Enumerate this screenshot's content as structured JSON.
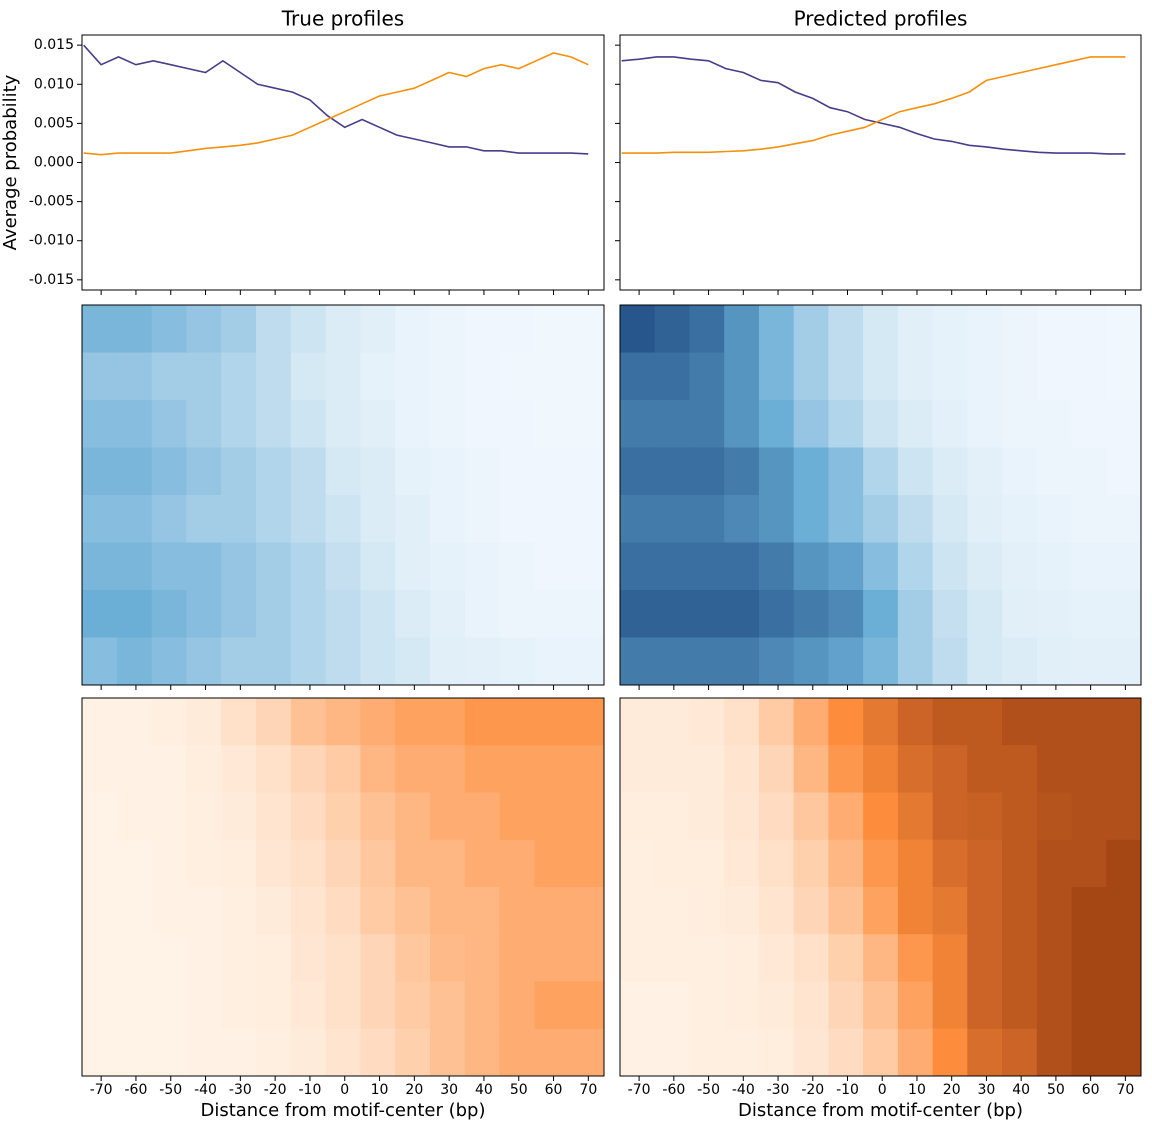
{
  "chart_data": [
    {
      "type": "line",
      "title": "True profiles",
      "ylabel": "Average probability",
      "x": [
        -75,
        -70,
        -65,
        -60,
        -55,
        -50,
        -45,
        -40,
        -35,
        -30,
        -25,
        -20,
        -15,
        -10,
        -5,
        0,
        5,
        10,
        15,
        20,
        25,
        30,
        35,
        40,
        45,
        50,
        55,
        60,
        65,
        70
      ],
      "series": [
        {
          "color": "#483d8b",
          "values": [
            0.015,
            0.0125,
            0.0135,
            0.0125,
            0.013,
            0.0125,
            0.012,
            0.0115,
            0.013,
            0.0115,
            0.01,
            0.0095,
            0.009,
            0.008,
            0.006,
            0.0045,
            0.0055,
            0.0045,
            0.0035,
            0.003,
            0.0025,
            0.002,
            0.002,
            0.0015,
            0.0015,
            0.0012,
            0.0012,
            0.0012,
            0.0012,
            0.0011
          ]
        },
        {
          "color": "#f5900e",
          "values": [
            0.0012,
            0.001,
            0.0012,
            0.0012,
            0.0012,
            0.0012,
            0.0015,
            0.0018,
            0.002,
            0.0022,
            0.0025,
            0.003,
            0.0035,
            0.0045,
            0.0055,
            0.0065,
            0.0075,
            0.0085,
            0.009,
            0.0095,
            0.0105,
            0.0115,
            0.011,
            0.012,
            0.0125,
            0.012,
            0.013,
            0.014,
            0.0135,
            0.0125
          ]
        }
      ],
      "xlim": [
        -75.5,
        74.5
      ],
      "xticks": [
        -70,
        -60,
        -50,
        -40,
        -30,
        -20,
        -10,
        0,
        10,
        20,
        30,
        40,
        50,
        60,
        70
      ],
      "ylim": [
        -0.0163,
        0.0163
      ],
      "yticks": [
        0.015,
        {
          "value": 0.01,
          "label": "0.010"
        },
        0.005,
        {
          "value": 0,
          "label": "0.000"
        },
        -0.005,
        {
          "value": -0.01,
          "label": "-0.010"
        },
        -0.015
      ],
      "show_ytick_labels": true
    },
    {
      "type": "line",
      "title": "Predicted profiles",
      "x": [
        -75,
        -70,
        -65,
        -60,
        -55,
        -50,
        -45,
        -40,
        -35,
        -30,
        -25,
        -20,
        -15,
        -10,
        -5,
        0,
        5,
        10,
        15,
        20,
        25,
        30,
        35,
        40,
        45,
        50,
        55,
        60,
        65,
        70
      ],
      "series": [
        {
          "color": "#483d8b",
          "values": [
            0.013,
            0.0132,
            0.0135,
            0.0135,
            0.0132,
            0.013,
            0.012,
            0.0115,
            0.0105,
            0.0102,
            0.009,
            0.0082,
            0.007,
            0.0065,
            0.0055,
            0.005,
            0.0045,
            0.0037,
            0.003,
            0.0027,
            0.0022,
            0.002,
            0.0017,
            0.0015,
            0.0013,
            0.0012,
            0.0012,
            0.0012,
            0.0011,
            0.0011
          ]
        },
        {
          "color": "#f5900e",
          "values": [
            0.0012,
            0.0012,
            0.0012,
            0.0013,
            0.0013,
            0.0013,
            0.0014,
            0.0015,
            0.0017,
            0.002,
            0.0024,
            0.0028,
            0.0035,
            0.004,
            0.0045,
            0.0055,
            0.0065,
            0.007,
            0.0075,
            0.0082,
            0.009,
            0.0105,
            0.011,
            0.0115,
            0.012,
            0.0125,
            0.013,
            0.0135,
            0.0135,
            0.0135
          ]
        }
      ],
      "xlim": [
        -75.5,
        74.5
      ],
      "xticks": [
        -70,
        -60,
        -50,
        -40,
        -30,
        -20,
        -10,
        0,
        10,
        20,
        30,
        40,
        50,
        60,
        70
      ],
      "ylim": [
        -0.0163,
        0.0163
      ],
      "yticks": [
        0.015,
        {
          "value": 0.01,
          "label": "0.010"
        },
        0.005,
        {
          "value": 0,
          "label": "0.000"
        },
        -0.005,
        {
          "value": -0.01,
          "label": "-0.010"
        },
        -0.015
      ],
      "show_ytick_labels": false
    },
    {
      "type": "heatmap",
      "colormap": [
        "#f7fbff",
        "#6baed6",
        "#08306b"
      ],
      "zlim": [
        0,
        1
      ],
      "xlim": [
        -75.5,
        74.5
      ],
      "xticks": [
        -70,
        -60,
        -50,
        -40,
        -30,
        -20,
        -10,
        0,
        10,
        20,
        30,
        40,
        50,
        60,
        70
      ],
      "show_xtick_labels": false,
      "bins": [
        -75.5,
        -65.5,
        -55.5,
        -45.5,
        -35.5,
        -25.5,
        -15.5,
        -5.5,
        4.5,
        14.5,
        24.5,
        34.5,
        44.5,
        54.5,
        64.5,
        74.5
      ],
      "rows": [
        [
          0.45,
          0.45,
          0.4,
          0.35,
          0.3,
          0.2,
          0.15,
          0.1,
          0.08,
          0.05,
          0.04,
          0.03,
          0.03,
          0.02,
          0.02
        ],
        [
          0.35,
          0.35,
          0.3,
          0.3,
          0.25,
          0.2,
          0.12,
          0.1,
          0.06,
          0.05,
          0.04,
          0.03,
          0.02,
          0.02,
          0.02
        ],
        [
          0.4,
          0.4,
          0.35,
          0.3,
          0.25,
          0.2,
          0.15,
          0.1,
          0.08,
          0.05,
          0.04,
          0.03,
          0.03,
          0.02,
          0.02
        ],
        [
          0.45,
          0.45,
          0.4,
          0.35,
          0.3,
          0.25,
          0.2,
          0.12,
          0.1,
          0.06,
          0.05,
          0.04,
          0.03,
          0.03,
          0.03
        ],
        [
          0.4,
          0.4,
          0.35,
          0.3,
          0.3,
          0.25,
          0.2,
          0.15,
          0.1,
          0.08,
          0.05,
          0.04,
          0.03,
          0.03,
          0.03
        ],
        [
          0.45,
          0.45,
          0.4,
          0.4,
          0.35,
          0.3,
          0.25,
          0.18,
          0.12,
          0.08,
          0.06,
          0.05,
          0.04,
          0.03,
          0.03
        ],
        [
          0.5,
          0.5,
          0.45,
          0.4,
          0.35,
          0.3,
          0.25,
          0.2,
          0.15,
          0.1,
          0.07,
          0.05,
          0.04,
          0.04,
          0.04
        ],
        [
          0.4,
          0.45,
          0.4,
          0.35,
          0.3,
          0.3,
          0.25,
          0.2,
          0.15,
          0.12,
          0.08,
          0.07,
          0.06,
          0.05,
          0.05
        ]
      ]
    },
    {
      "type": "heatmap",
      "colormap": [
        "#f7fbff",
        "#6baed6",
        "#08306b"
      ],
      "zlim": [
        0,
        1
      ],
      "xlim": [
        -75.5,
        74.5
      ],
      "xticks": [
        -70,
        -60,
        -50,
        -40,
        -30,
        -20,
        -10,
        0,
        10,
        20,
        30,
        40,
        50,
        60,
        70
      ],
      "show_xtick_labels": false,
      "bins": [
        -75.5,
        -65.5,
        -55.5,
        -45.5,
        -35.5,
        -25.5,
        -15.5,
        -5.5,
        4.5,
        14.5,
        24.5,
        34.5,
        44.5,
        54.5,
        64.5,
        74.5
      ],
      "rows": [
        [
          0.85,
          0.8,
          0.75,
          0.6,
          0.45,
          0.3,
          0.2,
          0.12,
          0.08,
          0.06,
          0.05,
          0.04,
          0.03,
          0.03,
          0.02
        ],
        [
          0.75,
          0.75,
          0.7,
          0.6,
          0.45,
          0.3,
          0.2,
          0.12,
          0.08,
          0.06,
          0.05,
          0.04,
          0.03,
          0.03,
          0.02
        ],
        [
          0.7,
          0.7,
          0.7,
          0.6,
          0.5,
          0.35,
          0.25,
          0.15,
          0.1,
          0.07,
          0.05,
          0.04,
          0.04,
          0.03,
          0.03
        ],
        [
          0.75,
          0.75,
          0.75,
          0.7,
          0.6,
          0.5,
          0.4,
          0.25,
          0.15,
          0.1,
          0.07,
          0.05,
          0.04,
          0.04,
          0.03
        ],
        [
          0.7,
          0.7,
          0.7,
          0.65,
          0.6,
          0.5,
          0.4,
          0.3,
          0.2,
          0.12,
          0.08,
          0.06,
          0.05,
          0.04,
          0.04
        ],
        [
          0.75,
          0.75,
          0.75,
          0.75,
          0.7,
          0.6,
          0.55,
          0.4,
          0.25,
          0.15,
          0.1,
          0.07,
          0.06,
          0.05,
          0.05
        ],
        [
          0.8,
          0.8,
          0.8,
          0.8,
          0.75,
          0.7,
          0.65,
          0.5,
          0.3,
          0.18,
          0.12,
          0.08,
          0.07,
          0.06,
          0.06
        ],
        [
          0.7,
          0.7,
          0.7,
          0.7,
          0.65,
          0.6,
          0.55,
          0.45,
          0.3,
          0.2,
          0.12,
          0.1,
          0.08,
          0.07,
          0.07
        ]
      ]
    },
    {
      "type": "heatmap",
      "colormap": [
        "#fff5eb",
        "#fd8d3c",
        "#7f2704"
      ],
      "zlim": [
        0,
        1
      ],
      "xlabel": "Distance from motif-center (bp)",
      "xlim": [
        -75.5,
        74.5
      ],
      "xticks": [
        -70,
        -60,
        -50,
        -40,
        -30,
        -20,
        -10,
        0,
        10,
        20,
        30,
        40,
        50,
        60,
        70
      ],
      "show_xtick_labels": true,
      "bins": [
        -75.5,
        -65.5,
        -55.5,
        -45.5,
        -35.5,
        -25.5,
        -15.5,
        -5.5,
        4.5,
        14.5,
        24.5,
        34.5,
        44.5,
        54.5,
        64.5,
        74.5
      ],
      "rows": [
        [
          0.02,
          0.02,
          0.03,
          0.05,
          0.1,
          0.15,
          0.25,
          0.3,
          0.35,
          0.4,
          0.4,
          0.45,
          0.45,
          0.45,
          0.45
        ],
        [
          0.02,
          0.02,
          0.02,
          0.04,
          0.06,
          0.1,
          0.15,
          0.2,
          0.3,
          0.35,
          0.35,
          0.4,
          0.4,
          0.4,
          0.4
        ],
        [
          0.01,
          0.02,
          0.02,
          0.03,
          0.05,
          0.08,
          0.12,
          0.18,
          0.25,
          0.3,
          0.35,
          0.35,
          0.4,
          0.4,
          0.4
        ],
        [
          0.01,
          0.01,
          0.02,
          0.03,
          0.04,
          0.07,
          0.1,
          0.15,
          0.22,
          0.3,
          0.3,
          0.35,
          0.35,
          0.4,
          0.4
        ],
        [
          0.01,
          0.01,
          0.02,
          0.02,
          0.03,
          0.05,
          0.08,
          0.12,
          0.2,
          0.25,
          0.3,
          0.3,
          0.35,
          0.35,
          0.35
        ],
        [
          0.01,
          0.01,
          0.01,
          0.02,
          0.03,
          0.04,
          0.07,
          0.1,
          0.15,
          0.22,
          0.28,
          0.3,
          0.35,
          0.35,
          0.35
        ],
        [
          0.01,
          0.01,
          0.01,
          0.02,
          0.03,
          0.04,
          0.06,
          0.1,
          0.15,
          0.2,
          0.25,
          0.3,
          0.35,
          0.4,
          0.4
        ],
        [
          0.01,
          0.01,
          0.01,
          0.02,
          0.02,
          0.03,
          0.05,
          0.08,
          0.12,
          0.18,
          0.25,
          0.3,
          0.35,
          0.35,
          0.35
        ]
      ]
    },
    {
      "type": "heatmap",
      "colormap": [
        "#fff5eb",
        "#fd8d3c",
        "#7f2704"
      ],
      "zlim": [
        0,
        1
      ],
      "xlabel": "Distance from motif-center (bp)",
      "xlim": [
        -75.5,
        74.5
      ],
      "xticks": [
        -70,
        -60,
        -50,
        -40,
        -30,
        -20,
        -10,
        0,
        10,
        20,
        30,
        40,
        50,
        60,
        70
      ],
      "show_xtick_labels": true,
      "bins": [
        -75.5,
        -65.5,
        -55.5,
        -45.5,
        -35.5,
        -25.5,
        -15.5,
        -5.5,
        4.5,
        14.5,
        24.5,
        34.5,
        44.5,
        54.5,
        64.5,
        74.5
      ],
      "rows": [
        [
          0.05,
          0.05,
          0.06,
          0.1,
          0.2,
          0.35,
          0.5,
          0.6,
          0.7,
          0.75,
          0.75,
          0.8,
          0.8,
          0.8,
          0.8
        ],
        [
          0.05,
          0.05,
          0.05,
          0.08,
          0.15,
          0.3,
          0.45,
          0.55,
          0.65,
          0.7,
          0.75,
          0.75,
          0.8,
          0.8,
          0.8
        ],
        [
          0.04,
          0.04,
          0.05,
          0.07,
          0.12,
          0.22,
          0.35,
          0.5,
          0.6,
          0.7,
          0.72,
          0.75,
          0.78,
          0.8,
          0.8
        ],
        [
          0.03,
          0.04,
          0.04,
          0.06,
          0.1,
          0.18,
          0.3,
          0.45,
          0.55,
          0.65,
          0.7,
          0.75,
          0.8,
          0.8,
          0.85
        ],
        [
          0.03,
          0.03,
          0.04,
          0.05,
          0.08,
          0.15,
          0.25,
          0.4,
          0.55,
          0.6,
          0.7,
          0.75,
          0.8,
          0.85,
          0.85
        ],
        [
          0.03,
          0.03,
          0.03,
          0.04,
          0.06,
          0.1,
          0.18,
          0.3,
          0.45,
          0.55,
          0.7,
          0.75,
          0.8,
          0.85,
          0.85
        ],
        [
          0.02,
          0.02,
          0.03,
          0.04,
          0.05,
          0.08,
          0.15,
          0.25,
          0.4,
          0.55,
          0.7,
          0.75,
          0.8,
          0.85,
          0.85
        ],
        [
          0.02,
          0.02,
          0.03,
          0.03,
          0.04,
          0.07,
          0.12,
          0.2,
          0.35,
          0.5,
          0.65,
          0.7,
          0.8,
          0.85,
          0.85
        ]
      ]
    }
  ]
}
